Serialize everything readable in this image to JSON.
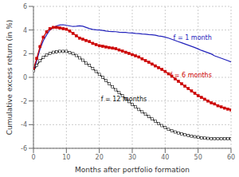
{
  "chart_data": {
    "type": "line",
    "xlabel": "Months after portfolio formation",
    "ylabel": "Cumulative excess return (in %)",
    "xlim": [
      0,
      60
    ],
    "ylim": [
      -6,
      6
    ],
    "xticks": [
      0,
      10,
      20,
      30,
      40,
      50,
      60
    ],
    "yticks": [
      -6,
      -4,
      -2,
      0,
      2,
      4,
      6
    ],
    "grid": true,
    "x": [
      0,
      1,
      2,
      3,
      4,
      5,
      6,
      7,
      8,
      9,
      10,
      11,
      12,
      13,
      14,
      15,
      16,
      17,
      18,
      19,
      20,
      21,
      22,
      23,
      24,
      25,
      26,
      27,
      28,
      29,
      30,
      31,
      32,
      33,
      34,
      35,
      36,
      37,
      38,
      39,
      40,
      41,
      42,
      43,
      44,
      45,
      46,
      47,
      48,
      49,
      50,
      51,
      52,
      53,
      54,
      55,
      56,
      57,
      58,
      59,
      60
    ],
    "series": [
      {
        "name": "f = 1 month",
        "color": "#2222bb",
        "marker": "none",
        "values": [
          0.5,
          1.4,
          2.4,
          3.1,
          3.6,
          4.0,
          4.2,
          4.35,
          4.42,
          4.45,
          4.4,
          4.35,
          4.3,
          4.32,
          4.35,
          4.32,
          4.22,
          4.12,
          4.05,
          4.02,
          4.0,
          3.97,
          3.92,
          3.88,
          3.87,
          3.86,
          3.82,
          3.8,
          3.8,
          3.76,
          3.75,
          3.72,
          3.7,
          3.66,
          3.65,
          3.61,
          3.6,
          3.56,
          3.5,
          3.46,
          3.4,
          3.32,
          3.22,
          3.12,
          3.02,
          2.92,
          2.82,
          2.72,
          2.62,
          2.52,
          2.4,
          2.28,
          2.18,
          2.08,
          1.98,
          1.82,
          1.72,
          1.62,
          1.52,
          1.42,
          1.3
        ]
      },
      {
        "name": "f = 6 months",
        "color": "#cc0000",
        "marker": "square",
        "values": [
          0.7,
          1.6,
          2.6,
          3.4,
          3.85,
          4.12,
          4.22,
          4.22,
          4.17,
          4.12,
          4.07,
          3.92,
          3.72,
          3.52,
          3.32,
          3.22,
          3.12,
          3.02,
          2.87,
          2.77,
          2.67,
          2.62,
          2.57,
          2.52,
          2.47,
          2.42,
          2.32,
          2.22,
          2.12,
          2.02,
          1.92,
          1.82,
          1.72,
          1.57,
          1.42,
          1.27,
          1.12,
          0.97,
          0.82,
          0.67,
          0.5,
          0.3,
          0.1,
          -0.12,
          -0.33,
          -0.55,
          -0.75,
          -0.95,
          -1.15,
          -1.35,
          -1.55,
          -1.7,
          -1.85,
          -2.0,
          -2.15,
          -2.25,
          -2.4,
          -2.5,
          -2.6,
          -2.68,
          -2.75
        ]
      },
      {
        "name": "f = 12 months",
        "color": "#111111",
        "marker": "square_open",
        "values": [
          0.55,
          1.0,
          1.4,
          1.7,
          1.9,
          2.02,
          2.12,
          2.17,
          2.2,
          2.2,
          2.2,
          2.1,
          2.0,
          1.85,
          1.65,
          1.45,
          1.2,
          1.0,
          0.75,
          0.5,
          0.25,
          0.0,
          -0.28,
          -0.55,
          -0.8,
          -1.05,
          -1.3,
          -1.55,
          -1.8,
          -2.05,
          -2.28,
          -2.5,
          -2.72,
          -2.92,
          -3.12,
          -3.32,
          -3.52,
          -3.72,
          -3.9,
          -4.08,
          -4.25,
          -4.4,
          -4.53,
          -4.62,
          -4.7,
          -4.78,
          -4.85,
          -4.92,
          -4.97,
          -5.02,
          -5.07,
          -5.11,
          -5.14,
          -5.16,
          -5.18,
          -5.19,
          -5.2,
          -5.2,
          -5.2,
          -5.2,
          -5.2
        ]
      }
    ],
    "annotations": [
      {
        "text": "f = 1 month",
        "x": 42,
        "y": 3.35,
        "color": "#2222bb"
      },
      {
        "text": "f = 6 months",
        "x": 41,
        "y": 0.18,
        "color": "#cc0000"
      },
      {
        "text": "f = 12 months",
        "x": 20,
        "y": -1.8,
        "color": "#111111"
      }
    ]
  }
}
